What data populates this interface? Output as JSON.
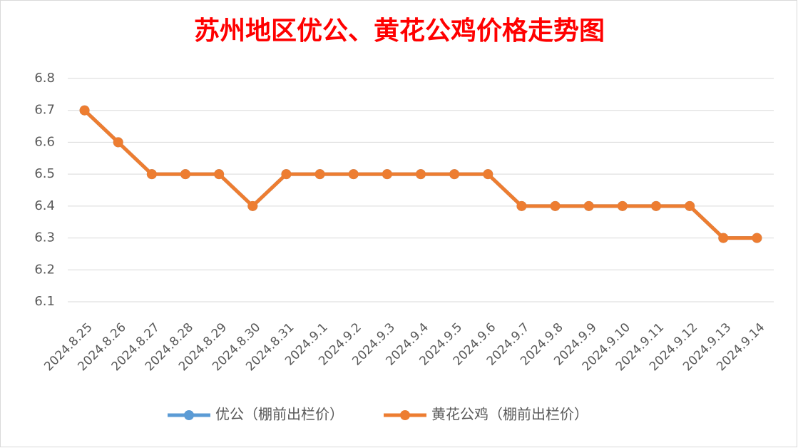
{
  "chart_data": {
    "type": "line",
    "title": "苏州地区优公、黄花公鸡价格走势图",
    "categories": [
      "2024.8.25",
      "2024.8.26",
      "2024.8.27",
      "2024.8.28",
      "2024.8.29",
      "2024.8.30",
      "2024.8.31",
      "2024.9.1",
      "2024.9.2",
      "2024.9.3",
      "2024.9.4",
      "2024.9.5",
      "2024.9.6",
      "2024.9.7",
      "2024.9.8",
      "2024.9.9",
      "2024.9.10",
      "2024.9.11",
      "2024.9.12",
      "2024.9.13",
      "2024.9.14"
    ],
    "series": [
      {
        "name": "优公（棚前出栏价）",
        "color": "#5b9bd5",
        "values": [
          6.7,
          6.6,
          6.5,
          6.5,
          6.5,
          6.4,
          6.5,
          6.5,
          6.5,
          6.5,
          6.5,
          6.5,
          6.5,
          6.4,
          6.4,
          6.4,
          6.4,
          6.4,
          6.4,
          6.3,
          6.3
        ]
      },
      {
        "name": "黄花公鸡（棚前出栏价）",
        "color": "#ed7d31",
        "values": [
          6.7,
          6.6,
          6.5,
          6.5,
          6.5,
          6.4,
          6.5,
          6.5,
          6.5,
          6.5,
          6.5,
          6.5,
          6.5,
          6.4,
          6.4,
          6.4,
          6.4,
          6.4,
          6.4,
          6.3,
          6.3
        ]
      }
    ],
    "ylim": [
      6.1,
      6.8
    ],
    "yticks": [
      6.1,
      6.2,
      6.3,
      6.4,
      6.5,
      6.6,
      6.7,
      6.8
    ],
    "grid": true,
    "legend": "bottom"
  }
}
